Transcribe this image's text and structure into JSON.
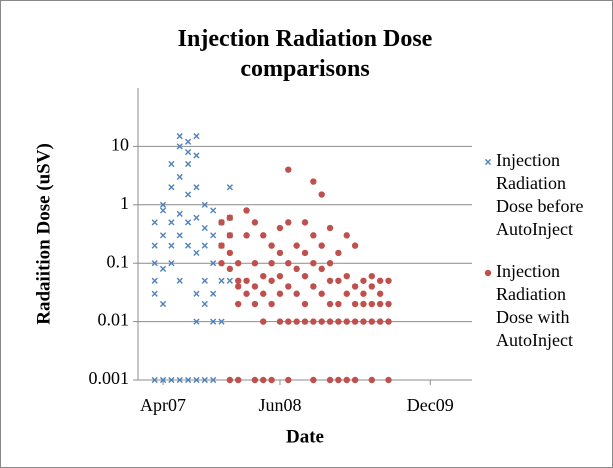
{
  "chart_data": {
    "type": "scatter",
    "title": "Injection Radiation Dose comparisons",
    "x_label": "Date",
    "y_label": "Radaiition Dose (uSV)",
    "log_y": true,
    "grid": true,
    "legend": "right",
    "xlim": [
      "2007-01",
      "2010-05"
    ],
    "xticks": [
      {
        "value": "2007-04",
        "label": "Apr07"
      },
      {
        "value": "2008-06",
        "label": "Jun08"
      },
      {
        "value": "2009-12",
        "label": "Dec09"
      }
    ],
    "ylim": [
      0.001,
      100
    ],
    "yticks": [
      0.001,
      0.01,
      0.1,
      1,
      10
    ],
    "series": [
      {
        "name": "Injection Radiation Dose before AutoInject",
        "color": "#4f81bd",
        "marker": "x",
        "x": [
          "2007-03",
          "2007-03",
          "2007-03",
          "2007-03",
          "2007-03",
          "2007-03",
          "2007-04",
          "2007-04",
          "2007-04",
          "2007-04",
          "2007-04",
          "2007-04",
          "2007-05",
          "2007-05",
          "2007-05",
          "2007-05",
          "2007-05",
          "2007-05",
          "2007-06",
          "2007-06",
          "2007-06",
          "2007-06",
          "2007-06",
          "2007-06",
          "2007-06",
          "2007-07",
          "2007-07",
          "2007-07",
          "2007-07",
          "2007-07",
          "2007-07",
          "2007-07",
          "2007-08",
          "2007-08",
          "2007-08",
          "2007-08",
          "2007-08",
          "2007-08",
          "2007-08",
          "2007-08",
          "2007-09",
          "2007-09",
          "2007-09",
          "2007-09",
          "2007-09",
          "2007-09",
          "2007-10",
          "2007-10",
          "2007-10",
          "2007-10",
          "2007-10",
          "2007-10",
          "2007-11",
          "2007-11",
          "2007-11",
          "2007-11",
          "2007-12",
          "2007-12",
          "2007-12",
          "2007-12"
        ],
        "values": [
          0.5,
          0.1,
          0.05,
          0.03,
          0.2,
          0.001,
          1,
          0.3,
          0.8,
          0.08,
          0.02,
          0.001,
          0.5,
          2,
          0.2,
          5,
          0.1,
          0.001,
          10,
          15,
          3,
          0.7,
          0.3,
          0.05,
          0.001,
          12,
          8,
          5,
          1.5,
          0.5,
          0.2,
          0.001,
          15,
          7,
          2,
          0.6,
          0.15,
          0.03,
          0.01,
          0.001,
          1,
          0.4,
          0.2,
          0.05,
          0.02,
          0.001,
          0.8,
          0.3,
          0.1,
          0.03,
          0.01,
          0.001,
          0.5,
          0.2,
          0.05,
          0.01,
          2,
          0.6,
          0.3,
          0.05
        ]
      },
      {
        "name": "Injection Radiation Dose with AutoInject",
        "color": "#c0504d",
        "marker": "circle",
        "x": [
          "2007-11",
          "2007-11",
          "2007-11",
          "2007-12",
          "2007-12",
          "2007-12",
          "2007-12",
          "2007-12",
          "2008-01",
          "2008-01",
          "2008-01",
          "2008-01",
          "2008-01",
          "2008-02",
          "2008-02",
          "2008-02",
          "2008-02",
          "2008-03",
          "2008-03",
          "2008-03",
          "2008-03",
          "2008-03",
          "2008-04",
          "2008-04",
          "2008-04",
          "2008-04",
          "2008-04",
          "2008-05",
          "2008-05",
          "2008-05",
          "2008-05",
          "2008-05",
          "2008-06",
          "2008-06",
          "2008-06",
          "2008-06",
          "2008-06",
          "2008-07",
          "2008-07",
          "2008-07",
          "2008-07",
          "2008-07",
          "2008-07",
          "2008-08",
          "2008-08",
          "2008-08",
          "2008-08",
          "2008-09",
          "2008-09",
          "2008-09",
          "2008-09",
          "2008-09",
          "2008-10",
          "2008-10",
          "2008-10",
          "2008-10",
          "2008-10",
          "2008-10",
          "2008-11",
          "2008-11",
          "2008-11",
          "2008-11",
          "2008-11",
          "2008-12",
          "2008-12",
          "2008-12",
          "2008-12",
          "2008-12",
          "2008-12",
          "2009-01",
          "2009-01",
          "2009-01",
          "2009-01",
          "2009-01",
          "2009-02",
          "2009-02",
          "2009-02",
          "2009-02",
          "2009-02",
          "2009-03",
          "2009-03",
          "2009-03",
          "2009-03",
          "2009-03",
          "2009-04",
          "2009-04",
          "2009-04",
          "2009-04",
          "2009-05",
          "2009-05",
          "2009-05",
          "2009-05",
          "2009-05",
          "2009-06",
          "2009-06",
          "2009-06",
          "2009-06",
          "2009-07",
          "2009-07",
          "2009-07",
          "2009-07"
        ],
        "values": [
          0.5,
          0.2,
          0.1,
          0.6,
          0.3,
          0.15,
          0.08,
          0.001,
          0.1,
          0.05,
          0.04,
          0.02,
          0.001,
          0.8,
          0.3,
          0.05,
          0.03,
          0.5,
          0.1,
          0.04,
          0.02,
          0.001,
          0.3,
          0.06,
          0.03,
          0.01,
          0.001,
          0.2,
          0.1,
          0.05,
          0.02,
          0.001,
          0.4,
          0.15,
          0.06,
          0.03,
          0.01,
          4,
          0.5,
          0.1,
          0.04,
          0.01,
          0.001,
          0.2,
          0.08,
          0.03,
          0.01,
          0.5,
          0.15,
          0.06,
          0.02,
          0.01,
          2.5,
          0.3,
          0.1,
          0.04,
          0.01,
          0.001,
          1.5,
          0.2,
          0.08,
          0.03,
          0.01,
          0.4,
          0.1,
          0.05,
          0.02,
          0.01,
          0.001,
          0.15,
          0.05,
          0.02,
          0.01,
          0.001,
          0.3,
          0.06,
          0.03,
          0.01,
          0.001,
          0.2,
          0.04,
          0.02,
          0.01,
          0.001,
          0.05,
          0.03,
          0.02,
          0.01,
          0.06,
          0.04,
          0.02,
          0.01,
          0.001,
          0.05,
          0.03,
          0.02,
          0.01,
          0.05,
          0.02,
          0.01,
          0.001
        ]
      }
    ]
  }
}
